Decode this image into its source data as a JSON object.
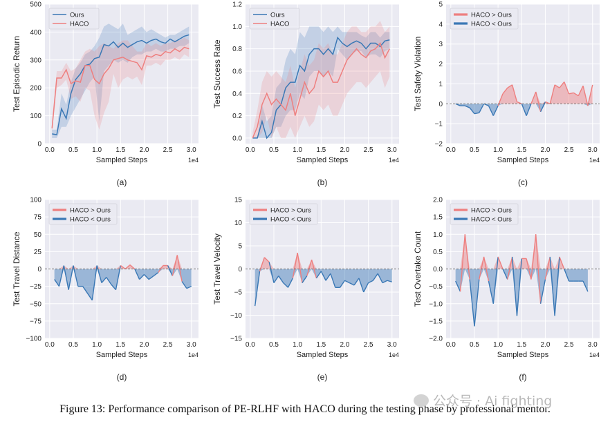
{
  "chart_data": [
    {
      "panel": "(a)",
      "type": "line",
      "ylabel": "Test Episodic Return",
      "xlabel": "Sampled Steps",
      "x_multiplier": "1e4",
      "ylim": [
        0,
        500
      ],
      "yticks": [
        0,
        100,
        200,
        300,
        400,
        500
      ],
      "xticks": [
        0.0,
        0.5,
        1.0,
        1.5,
        2.0,
        2.5,
        3.0
      ],
      "legend": "top-left",
      "series": [
        {
          "name": "Ours",
          "color": "#3a78b5",
          "x": [
            0.05,
            0.15,
            0.25,
            0.35,
            0.45,
            0.55,
            0.65,
            0.75,
            0.85,
            0.95,
            1.05,
            1.15,
            1.25,
            1.35,
            1.45,
            1.55,
            1.65,
            1.75,
            1.85,
            1.95,
            2.05,
            2.15,
            2.25,
            2.35,
            2.45,
            2.55,
            2.65,
            2.75,
            2.85,
            2.95
          ],
          "y": [
            35,
            32,
            125,
            90,
            180,
            230,
            250,
            280,
            285,
            305,
            310,
            355,
            350,
            365,
            345,
            360,
            345,
            355,
            365,
            370,
            360,
            370,
            375,
            365,
            360,
            375,
            365,
            375,
            385,
            390
          ],
          "lower": [
            20,
            20,
            60,
            60,
            100,
            130,
            160,
            190,
            220,
            240,
            80,
            260,
            280,
            300,
            290,
            300,
            290,
            310,
            320,
            320,
            330,
            330,
            340,
            330,
            330,
            340,
            340,
            350,
            350,
            360
          ],
          "upper": [
            50,
            50,
            180,
            140,
            220,
            270,
            290,
            320,
            330,
            350,
            380,
            420,
            430,
            420,
            410,
            430,
            390,
            400,
            410,
            420,
            400,
            410,
            400,
            390,
            380,
            390,
            390,
            400,
            410,
            420
          ]
        },
        {
          "name": "HACO",
          "color": "#ee7f7f",
          "x": [
            0.05,
            0.15,
            0.25,
            0.35,
            0.45,
            0.55,
            0.65,
            0.75,
            0.85,
            0.95,
            1.05,
            1.15,
            1.25,
            1.35,
            1.45,
            1.55,
            1.65,
            1.75,
            1.85,
            1.95,
            2.05,
            2.15,
            2.25,
            2.35,
            2.45,
            2.55,
            2.65,
            2.75,
            2.85,
            2.95
          ],
          "y": [
            55,
            235,
            235,
            265,
            215,
            225,
            220,
            280,
            280,
            230,
            215,
            250,
            270,
            300,
            305,
            310,
            300,
            295,
            290,
            265,
            315,
            310,
            320,
            315,
            330,
            325,
            340,
            330,
            345,
            340
          ],
          "lower": [
            40,
            200,
            210,
            230,
            160,
            170,
            150,
            200,
            190,
            100,
            50,
            110,
            150,
            250,
            200,
            230,
            240,
            230,
            240,
            210,
            280,
            280,
            290,
            280,
            300,
            300,
            310,
            300,
            320,
            310
          ],
          "upper": [
            80,
            260,
            260,
            290,
            260,
            270,
            300,
            330,
            340,
            330,
            350,
            360,
            350,
            340,
            360,
            370,
            370,
            350,
            330,
            330,
            360,
            350,
            360,
            350,
            360,
            360,
            370,
            370,
            380,
            370
          ]
        }
      ]
    },
    {
      "panel": "(b)",
      "type": "line",
      "ylabel": "Test Success Rate",
      "xlabel": "Sampled Steps",
      "x_multiplier": "1e4",
      "ylim": [
        -0.05,
        1.2
      ],
      "yticks": [
        0.0,
        0.2,
        0.4,
        0.6,
        0.8,
        1.0,
        1.2
      ],
      "xticks": [
        0.0,
        0.5,
        1.0,
        1.5,
        2.0,
        2.5,
        3.0
      ],
      "legend": "top-left",
      "series": [
        {
          "name": "Ours",
          "color": "#3a78b5",
          "x": [
            0.05,
            0.15,
            0.25,
            0.35,
            0.45,
            0.55,
            0.65,
            0.75,
            0.85,
            0.95,
            1.05,
            1.15,
            1.25,
            1.35,
            1.45,
            1.55,
            1.65,
            1.75,
            1.85,
            1.95,
            2.05,
            2.15,
            2.25,
            2.35,
            2.45,
            2.55,
            2.65,
            2.75,
            2.85,
            2.95
          ],
          "y": [
            0.0,
            0.0,
            0.15,
            0.0,
            0.05,
            0.25,
            0.3,
            0.45,
            0.5,
            0.5,
            0.65,
            0.6,
            0.75,
            0.8,
            0.8,
            0.75,
            0.8,
            0.75,
            0.9,
            0.85,
            0.82,
            0.85,
            0.87,
            0.85,
            0.8,
            0.85,
            0.85,
            0.82,
            0.87,
            0.88
          ],
          "lower": [
            0.0,
            0.0,
            0.0,
            0.0,
            0.0,
            0.1,
            0.1,
            0.2,
            0.25,
            0.25,
            0.4,
            0.35,
            0.55,
            0.6,
            0.6,
            0.55,
            0.6,
            0.55,
            0.8,
            0.75,
            0.7,
            0.75,
            0.78,
            0.78,
            0.72,
            0.75,
            0.75,
            0.72,
            0.78,
            0.8
          ],
          "upper": [
            0.0,
            0.0,
            0.3,
            0.15,
            0.2,
            0.45,
            0.5,
            0.7,
            0.8,
            0.75,
            0.95,
            0.9,
            1.0,
            1.0,
            1.0,
            0.95,
            1.0,
            0.95,
            1.0,
            0.95,
            0.95,
            0.95,
            0.95,
            0.92,
            0.9,
            0.95,
            0.95,
            0.9,
            0.95,
            0.95
          ]
        },
        {
          "name": "HACO",
          "color": "#ee7f7f",
          "x": [
            0.05,
            0.15,
            0.25,
            0.35,
            0.45,
            0.55,
            0.65,
            0.75,
            0.85,
            0.95,
            1.05,
            1.15,
            1.25,
            1.35,
            1.45,
            1.55,
            1.65,
            1.75,
            1.85,
            1.95,
            2.05,
            2.15,
            2.25,
            2.35,
            2.45,
            2.55,
            2.65,
            2.75,
            2.85,
            2.95
          ],
          "y": [
            0.0,
            0.1,
            0.3,
            0.4,
            0.3,
            0.35,
            0.3,
            0.25,
            0.4,
            0.2,
            0.35,
            0.5,
            0.4,
            0.45,
            0.6,
            0.55,
            0.6,
            0.5,
            0.5,
            0.6,
            0.7,
            0.75,
            0.8,
            0.75,
            0.72,
            0.78,
            0.8,
            0.85,
            0.72,
            0.8
          ],
          "lower": [
            0.0,
            0.0,
            0.05,
            0.2,
            0.0,
            0.1,
            0.0,
            0.0,
            0.1,
            0.0,
            0.1,
            0.2,
            0.1,
            0.15,
            0.3,
            0.25,
            0.3,
            0.2,
            0.2,
            0.3,
            0.4,
            0.45,
            0.5,
            0.5,
            0.45,
            0.5,
            0.55,
            0.6,
            0.45,
            0.55
          ],
          "upper": [
            0.05,
            0.25,
            0.5,
            0.6,
            0.55,
            0.6,
            0.55,
            0.5,
            0.65,
            0.45,
            0.6,
            0.75,
            0.65,
            0.7,
            0.85,
            0.8,
            0.85,
            0.75,
            0.75,
            0.85,
            0.95,
            1.0,
            1.0,
            0.95,
            0.95,
            1.0,
            1.0,
            1.05,
            0.95,
            1.0
          ]
        }
      ]
    },
    {
      "panel": "(c)",
      "type": "area",
      "ylabel": "Test Safety Violation",
      "xlabel": "Sampled Steps",
      "x_multiplier": "1e4",
      "ylim": [
        -2,
        5
      ],
      "yticks": [
        -2,
        -1,
        0,
        1,
        2,
        3,
        4,
        5
      ],
      "xticks": [
        0.0,
        0.5,
        1.0,
        1.5,
        2.0,
        2.5,
        3.0
      ],
      "legend": "top-left",
      "legend_entries": [
        "HACO > Ours",
        "HACO < Ours"
      ],
      "x": [
        0.1,
        0.2,
        0.3,
        0.4,
        0.5,
        0.6,
        0.7,
        0.8,
        0.9,
        1.0,
        1.1,
        1.2,
        1.3,
        1.4,
        1.5,
        1.6,
        1.7,
        1.8,
        1.9,
        2.0,
        2.1,
        2.2,
        2.3,
        2.4,
        2.5,
        2.6,
        2.7,
        2.8,
        2.9,
        3.0
      ],
      "values": [
        0.0,
        -0.1,
        -0.1,
        -0.2,
        -0.5,
        -0.45,
        0.0,
        -0.1,
        -0.6,
        -0.1,
        0.5,
        0.8,
        0.95,
        0.1,
        0.0,
        -0.6,
        0.0,
        0.6,
        -0.4,
        0.1,
        0.0,
        0.95,
        0.8,
        1.1,
        0.5,
        0.55,
        0.4,
        0.9,
        -0.1,
        0.95
      ]
    },
    {
      "panel": "(d)",
      "type": "area",
      "ylabel": "Test Travel Distance",
      "xlabel": "Sampled Steps",
      "x_multiplier": "1e4",
      "ylim": [
        -100,
        100
      ],
      "yticks": [
        -100,
        -75,
        -50,
        -25,
        0,
        25,
        50,
        75,
        100
      ],
      "xticks": [
        0.0,
        0.5,
        1.0,
        1.5,
        2.0,
        2.5,
        3.0
      ],
      "legend": "top-left",
      "legend_entries": [
        "HACO > Ours",
        "HACO < Ours"
      ],
      "x": [
        0.1,
        0.2,
        0.3,
        0.4,
        0.5,
        0.6,
        0.7,
        0.8,
        0.9,
        1.0,
        1.1,
        1.2,
        1.3,
        1.4,
        1.5,
        1.6,
        1.7,
        1.8,
        1.9,
        2.0,
        2.1,
        2.2,
        2.3,
        2.4,
        2.5,
        2.6,
        2.7,
        2.8,
        2.9,
        3.0
      ],
      "values": [
        -15,
        -25,
        5,
        -30,
        5,
        -25,
        -25,
        -35,
        -45,
        5,
        -20,
        -12,
        -22,
        -30,
        5,
        0,
        6,
        0,
        -15,
        -8,
        -15,
        -10,
        -5,
        5,
        5,
        -10,
        20,
        -18,
        -28,
        -25
      ]
    },
    {
      "panel": "(e)",
      "type": "area",
      "ylabel": "Test Travel Velocity",
      "xlabel": "Sampled Steps",
      "x_multiplier": "1e4",
      "ylim": [
        -15,
        15
      ],
      "yticks": [
        -15,
        -10,
        -5,
        0,
        5,
        10,
        15
      ],
      "xticks": [
        0.0,
        0.5,
        1.0,
        1.5,
        2.0,
        2.5,
        3.0
      ],
      "legend": "top-left",
      "legend_entries": [
        "HACO > Ours",
        "HACO < Ours"
      ],
      "x": [
        0.1,
        0.2,
        0.3,
        0.4,
        0.5,
        0.6,
        0.7,
        0.8,
        0.9,
        1.0,
        1.1,
        1.2,
        1.3,
        1.4,
        1.5,
        1.6,
        1.7,
        1.8,
        1.9,
        2.0,
        2.1,
        2.2,
        2.3,
        2.4,
        2.5,
        2.6,
        2.7,
        2.8,
        2.9,
        3.0
      ],
      "values": [
        -8,
        -0.5,
        2.5,
        1.5,
        -3,
        -1.5,
        -3,
        -4,
        -2,
        3.5,
        -3,
        -1.5,
        2,
        -2,
        -0.5,
        -2.5,
        -1,
        -4,
        -4,
        -2.5,
        -3,
        -3.5,
        -2,
        -5,
        -3,
        -2.5,
        -1,
        -3,
        -2.5,
        -2.8
      ]
    },
    {
      "panel": "(f)",
      "type": "area",
      "ylabel": "Test Overtake Count",
      "xlabel": "Sampled Steps",
      "x_multiplier": "1e4",
      "ylim": [
        -2.0,
        2.0
      ],
      "yticks": [
        -2.0,
        -1.5,
        -1.0,
        -0.5,
        0.0,
        0.5,
        1.0,
        1.5,
        2.0
      ],
      "xticks": [
        0.0,
        0.5,
        1.0,
        1.5,
        2.0,
        2.5,
        3.0
      ],
      "legend": "top-left",
      "legend_entries": [
        "HACO > Ours",
        "HACO < Ours"
      ],
      "x": [
        0.1,
        0.2,
        0.3,
        0.4,
        0.5,
        0.6,
        0.7,
        0.8,
        0.9,
        1.0,
        1.1,
        1.2,
        1.3,
        1.4,
        1.5,
        1.6,
        1.7,
        1.8,
        1.9,
        2.0,
        2.1,
        2.2,
        2.3,
        2.4,
        2.5,
        2.6,
        2.7,
        2.8,
        2.9
      ],
      "values": [
        -0.35,
        -0.65,
        1.0,
        -0.3,
        -1.65,
        -0.3,
        0.35,
        -0.35,
        -1.0,
        0.35,
        0.0,
        -0.3,
        0.35,
        -1.35,
        0.3,
        0.3,
        -0.3,
        1.0,
        -1.0,
        -0.3,
        0.35,
        -1.35,
        0.35,
        0.0,
        -0.35,
        -0.35,
        -0.35,
        -0.35,
        -0.65
      ]
    }
  ],
  "figure_caption": "Figure 13: Performance comparison of PE-RLHF with HACO during the testing phase by professional mentor.",
  "watermark": "公众号 · Ai fighting",
  "colors": {
    "blue": "#3a78b5",
    "red": "#ee7f7f",
    "panel_bg": "#eaeaf2"
  }
}
